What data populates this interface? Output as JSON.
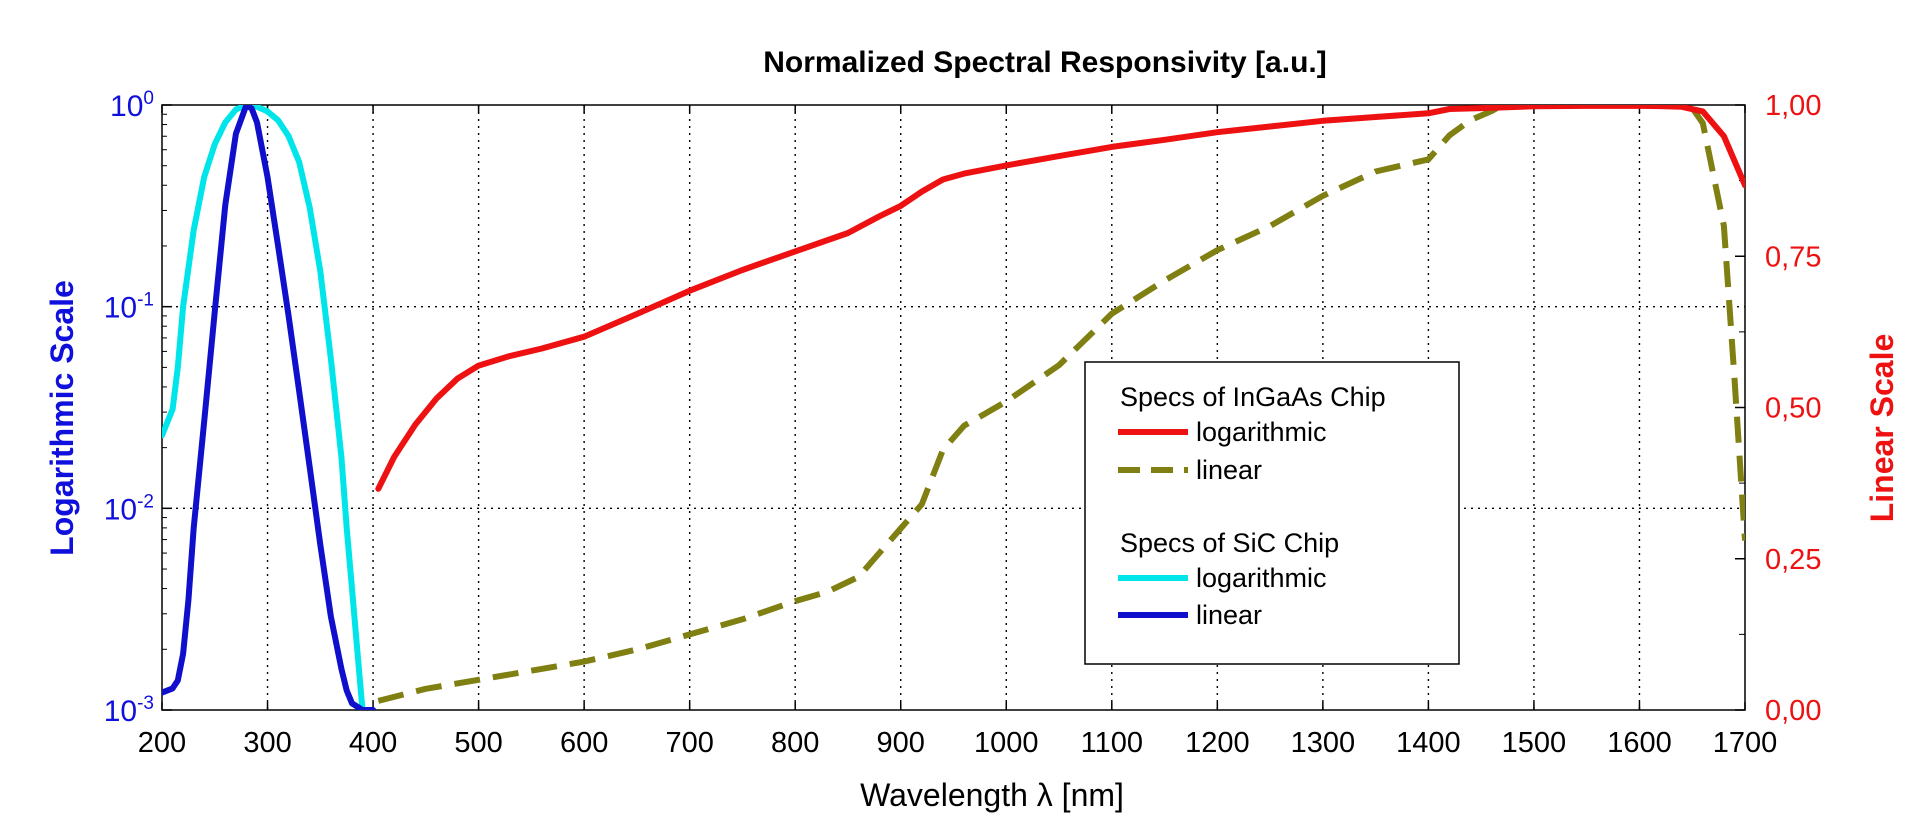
{
  "chart_data": {
    "type": "line",
    "title": "Normalized Spectral Responsivity [a.u.]",
    "xlabel": "Wavelength λ [nm]",
    "ylabel_left": "Logarithmic Scale",
    "ylabel_right": "Linear Scale",
    "xlim": [
      200,
      1700
    ],
    "ylim_left": [
      0.001,
      1
    ],
    "ylim_right": [
      0,
      1
    ],
    "y_left_scale": "log",
    "grid": true,
    "legend_placement": "center-right",
    "x_ticks": [
      "200",
      "300",
      "400",
      "500",
      "600",
      "700",
      "800",
      "900",
      "1000",
      "1100",
      "1200",
      "1300",
      "1400",
      "1500",
      "1600",
      "1700"
    ],
    "y_left_ticks": [
      {
        "value": 0.001,
        "base": "10",
        "exp": "-3"
      },
      {
        "value": 0.01,
        "base": "10",
        "exp": "-2"
      },
      {
        "value": 0.1,
        "base": "10",
        "exp": "-1"
      },
      {
        "value": 1,
        "base": "10",
        "exp": "0"
      }
    ],
    "y_right_ticks": [
      {
        "value": 0,
        "label": "0,00"
      },
      {
        "value": 0.25,
        "label": "0,25"
      },
      {
        "value": 0.5,
        "label": "0,50"
      },
      {
        "value": 0.75,
        "label": "0,75"
      },
      {
        "value": 1,
        "label": "1,00"
      }
    ],
    "legend_groups": [
      {
        "title": "Specs of InGaAs Chip",
        "entries": [
          "ingaas_log",
          "ingaas_lin"
        ]
      },
      {
        "title": "Specs of SiC Chip",
        "entries": [
          "sic_log",
          "sic_lin"
        ]
      }
    ],
    "series": [
      {
        "id": "ingaas_log",
        "name": "logarithmic",
        "axis": "left",
        "color": "#ee1111",
        "dash": "solid",
        "x": [
          405,
          420,
          440,
          460,
          480,
          500,
          530,
          560,
          600,
          650,
          700,
          750,
          800,
          850,
          880,
          900,
          920,
          940,
          960,
          1000,
          1050,
          1100,
          1150,
          1200,
          1250,
          1300,
          1350,
          1400,
          1420,
          1450,
          1500,
          1550,
          1600,
          1620,
          1640,
          1660,
          1680,
          1700
        ],
        "y": [
          0.0125,
          0.018,
          0.026,
          0.035,
          0.044,
          0.051,
          0.057,
          0.062,
          0.071,
          0.092,
          0.12,
          0.152,
          0.188,
          0.232,
          0.281,
          0.316,
          0.372,
          0.427,
          0.457,
          0.502,
          0.558,
          0.62,
          0.672,
          0.733,
          0.782,
          0.835,
          0.872,
          0.91,
          0.955,
          0.965,
          0.985,
          0.99,
          0.99,
          0.988,
          0.98,
          0.93,
          0.7,
          0.4
        ]
      },
      {
        "id": "ingaas_lin",
        "name": "linear",
        "axis": "right",
        "color": "#7f7f12",
        "dash": "dashed",
        "x": [
          405,
          450,
          500,
          550,
          600,
          650,
          700,
          750,
          800,
          830,
          860,
          880,
          900,
          920,
          940,
          960,
          980,
          1000,
          1050,
          1100,
          1150,
          1200,
          1250,
          1300,
          1350,
          1400,
          1420,
          1440,
          1460,
          1480,
          1500,
          1550,
          1600,
          1640,
          1660,
          1680,
          1690,
          1700
        ],
        "y": [
          0.015,
          0.035,
          0.05,
          0.065,
          0.08,
          0.1,
          0.125,
          0.15,
          0.18,
          0.195,
          0.22,
          0.26,
          0.3,
          0.34,
          0.43,
          0.47,
          0.49,
          0.51,
          0.57,
          0.655,
          0.71,
          0.76,
          0.8,
          0.85,
          0.89,
          0.91,
          0.95,
          0.975,
          0.99,
          1.01,
          1.02,
          1.02,
          1.02,
          1.02,
          0.97,
          0.8,
          0.55,
          0.28
        ]
      },
      {
        "id": "sic_log",
        "name": "logarithmic",
        "axis": "left",
        "color": "#00e5ea",
        "dash": "solid",
        "x": [
          200,
          210,
          215,
          220,
          230,
          240,
          250,
          260,
          270,
          280,
          290,
          300,
          310,
          320,
          330,
          340,
          350,
          360,
          370,
          375,
          380,
          385,
          390
        ],
        "y": [
          0.023,
          0.031,
          0.05,
          0.1,
          0.24,
          0.44,
          0.64,
          0.82,
          0.95,
          1.0,
          0.98,
          0.93,
          0.84,
          0.7,
          0.52,
          0.31,
          0.15,
          0.055,
          0.018,
          0.008,
          0.004,
          0.002,
          0.001
        ]
      },
      {
        "id": "sic_lin",
        "name": "linear",
        "axis": "left",
        "color": "#1010cc",
        "dash": "solid",
        "x": [
          200,
          210,
          215,
          220,
          225,
          230,
          240,
          250,
          260,
          270,
          280,
          285,
          290,
          300,
          310,
          320,
          330,
          340,
          350,
          360,
          370,
          375,
          380,
          390,
          400
        ],
        "y": [
          0.00122,
          0.00128,
          0.0014,
          0.0019,
          0.0035,
          0.008,
          0.027,
          0.095,
          0.32,
          0.72,
          1.0,
          0.96,
          0.82,
          0.44,
          0.2,
          0.09,
          0.038,
          0.016,
          0.0066,
          0.0029,
          0.0016,
          0.00125,
          0.00108,
          0.001,
          0.001
        ]
      }
    ]
  }
}
